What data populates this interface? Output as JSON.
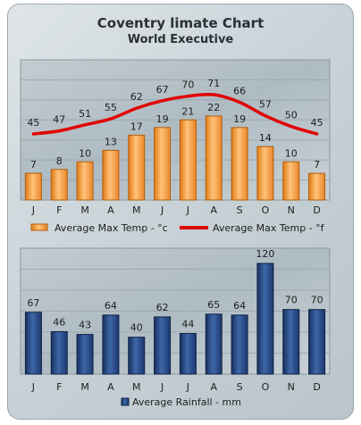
{
  "header": {
    "title": "Coventry limate Chart",
    "subtitle": "World Executive"
  },
  "chart_data": [
    {
      "type": "bar",
      "categories": [
        "J",
        "F",
        "M",
        "A",
        "M",
        "J",
        "J",
        "A",
        "S",
        "O",
        "N",
        "D"
      ],
      "series": [
        {
          "name": "Average Max Temp - °c",
          "type": "bar",
          "color": "#f19a38",
          "values": [
            7,
            8,
            10,
            13,
            17,
            19,
            21,
            22,
            19,
            14,
            10,
            7
          ]
        },
        {
          "name": "Average Max Temp - °f",
          "type": "line",
          "color": "#e00000",
          "values": [
            45,
            47,
            51,
            55,
            62,
            67,
            70,
            71,
            66,
            57,
            50,
            45
          ]
        }
      ],
      "grid": true,
      "legend": "bottom"
    },
    {
      "type": "bar",
      "categories": [
        "J",
        "F",
        "M",
        "A",
        "M",
        "J",
        "J",
        "A",
        "S",
        "O",
        "N",
        "D"
      ],
      "series": [
        {
          "name": "Average Rainfall - mm",
          "color": "#1f3f7a",
          "values": [
            67,
            46,
            43,
            64,
            40,
            62,
            44,
            65,
            64,
            120,
            70,
            70
          ]
        }
      ],
      "grid": true,
      "legend": "bottom"
    }
  ]
}
